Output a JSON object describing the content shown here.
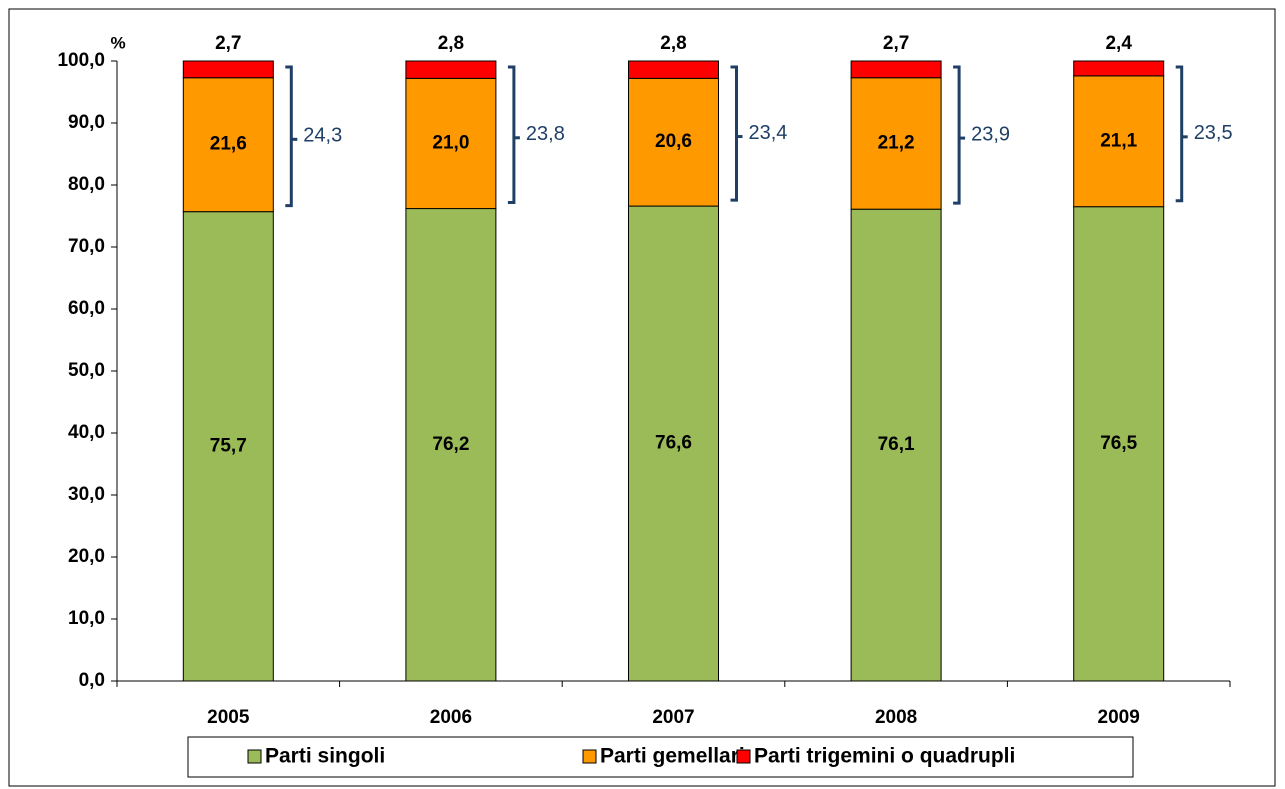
{
  "chart_data": {
    "type": "stacked_bar",
    "ylabel": "%",
    "categories": [
      "2005",
      "2006",
      "2007",
      "2008",
      "2009"
    ],
    "series": [
      {
        "name": "Parti singoli",
        "color": "#9bbb59",
        "values": [
          75.7,
          76.2,
          76.6,
          76.1,
          76.5
        ],
        "value_labels": [
          "75,7",
          "76,2",
          "76,6",
          "76,1",
          "76,5"
        ]
      },
      {
        "name": "Parti gemellari",
        "color": "#ff9900",
        "values": [
          21.6,
          21.0,
          20.6,
          21.2,
          21.1
        ],
        "value_labels": [
          "21,6",
          "21,0",
          "20,6",
          "21,2",
          "21,1"
        ]
      },
      {
        "name": "Parti trigemini o quadrupli",
        "color": "#ff0000",
        "values": [
          2.7,
          2.8,
          2.8,
          2.7,
          2.4
        ],
        "value_labels": [
          "2,7",
          "2,8",
          "2,8",
          "2,7",
          "2,4"
        ]
      }
    ],
    "brackets": {
      "color": "#1f3f66",
      "values": [
        24.3,
        23.8,
        23.4,
        23.9,
        23.5
      ],
      "value_labels": [
        "24,3",
        "23,8",
        "23,4",
        "23,9",
        "23,5"
      ]
    },
    "ylim": [
      0,
      100
    ],
    "yticks": [
      {
        "value": 0,
        "label": "0,0"
      },
      {
        "value": 10,
        "label": "10,0"
      },
      {
        "value": 20,
        "label": "20,0"
      },
      {
        "value": 30,
        "label": "30,0"
      },
      {
        "value": 40,
        "label": "40,0"
      },
      {
        "value": 50,
        "label": "50,0"
      },
      {
        "value": 60,
        "label": "60,0"
      },
      {
        "value": 70,
        "label": "70,0"
      },
      {
        "value": 80,
        "label": "80,0"
      },
      {
        "value": 90,
        "label": "90,0"
      },
      {
        "value": 100,
        "label": "100,0"
      }
    ],
    "legend": "bottom"
  }
}
